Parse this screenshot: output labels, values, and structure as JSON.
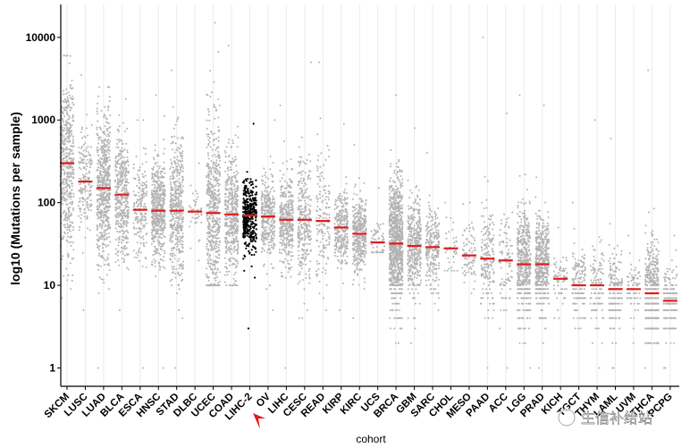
{
  "chart_data": {
    "type": "scatter",
    "subtype": "tmb-strip-plot",
    "xlabel": "cohort",
    "ylabel": "log10 (Mutations per sample)",
    "yscale": "log",
    "ylim": [
      0.6,
      25000
    ],
    "yticks": [
      1,
      10,
      100,
      1000,
      10000
    ],
    "grid": "vertical",
    "point_color": "#b3b3b3",
    "highlight_color": "#000000",
    "median_color": "#e31a1c",
    "highlight_cohort": "LIHC-2",
    "cohorts": [
      {
        "name": "SKCM",
        "median": 300,
        "n": 470,
        "spread": 0.55,
        "max": 6000,
        "min": 7
      },
      {
        "name": "LUSC",
        "median": 180,
        "n": 180,
        "spread": 0.3,
        "max": 3500,
        "min": 5
      },
      {
        "name": "LUAD",
        "median": 150,
        "n": 570,
        "spread": 0.45,
        "max": 2500,
        "min": 1
      },
      {
        "name": "BLCA",
        "median": 125,
        "n": 410,
        "spread": 0.4,
        "max": 1800,
        "min": 5
      },
      {
        "name": "ESCA",
        "median": 82,
        "n": 185,
        "spread": 0.28,
        "max": 1000,
        "min": 1
      },
      {
        "name": "HNSC",
        "median": 80,
        "n": 510,
        "spread": 0.3,
        "max": 2000,
        "min": 1
      },
      {
        "name": "STAD",
        "median": 80,
        "n": 440,
        "spread": 0.45,
        "max": 4000,
        "min": 1
      },
      {
        "name": "DLBC",
        "median": 78,
        "n": 40,
        "spread": 0.2,
        "max": 300,
        "min": 20
      },
      {
        "name": "UCEC",
        "median": 75,
        "n": 540,
        "spread": 0.6,
        "max": 15000,
        "min": 10
      },
      {
        "name": "COAD",
        "median": 72,
        "n": 430,
        "spread": 0.4,
        "max": 8000,
        "min": 10
      },
      {
        "name": "LIHC-2",
        "median": 70,
        "n": 370,
        "spread": 0.22,
        "max": 900,
        "min": 3
      },
      {
        "name": "OV",
        "median": 68,
        "n": 320,
        "spread": 0.25,
        "max": 1000,
        "min": 5
      },
      {
        "name": "LIHC",
        "median": 62,
        "n": 370,
        "spread": 0.28,
        "max": 1500,
        "min": 1
      },
      {
        "name": "CESC",
        "median": 62,
        "n": 290,
        "spread": 0.38,
        "max": 5000,
        "min": 4
      },
      {
        "name": "READ",
        "median": 60,
        "n": 150,
        "spread": 0.38,
        "max": 5000,
        "min": 5
      },
      {
        "name": "KIRP",
        "median": 50,
        "n": 280,
        "spread": 0.22,
        "max": 900,
        "min": 5
      },
      {
        "name": "KIRC",
        "median": 42,
        "n": 370,
        "spread": 0.22,
        "max": 500,
        "min": 4
      },
      {
        "name": "UCS",
        "median": 33,
        "n": 57,
        "spread": 0.12,
        "max": 150,
        "min": 25
      },
      {
        "name": "BRCA",
        "median": 32,
        "n": 990,
        "spread": 0.4,
        "max": 2000,
        "min": 2
      },
      {
        "name": "GBM",
        "median": 30,
        "n": 390,
        "spread": 0.3,
        "max": 800,
        "min": 2
      },
      {
        "name": "SARC",
        "median": 29,
        "n": 240,
        "spread": 0.25,
        "max": 400,
        "min": 5
      },
      {
        "name": "CHOL",
        "median": 28,
        "n": 36,
        "spread": 0.18,
        "max": 100,
        "min": 15
      },
      {
        "name": "MESO",
        "median": 23,
        "n": 82,
        "spread": 0.18,
        "max": 100,
        "min": 8
      },
      {
        "name": "PAAD",
        "median": 21,
        "n": 180,
        "spread": 0.35,
        "max": 10000,
        "min": 1
      },
      {
        "name": "ACC",
        "median": 20,
        "n": 92,
        "spread": 0.3,
        "max": 1200,
        "min": 1
      },
      {
        "name": "LGG",
        "median": 18,
        "n": 510,
        "spread": 0.35,
        "max": 2000,
        "min": 1
      },
      {
        "name": "PRAD",
        "median": 18,
        "n": 490,
        "spread": 0.3,
        "max": 1500,
        "min": 1
      },
      {
        "name": "KICH",
        "median": 12,
        "n": 66,
        "spread": 0.15,
        "max": 50,
        "min": 4
      },
      {
        "name": "TGCT",
        "median": 10,
        "n": 150,
        "spread": 0.22,
        "max": 100,
        "min": 3
      },
      {
        "name": "THYM",
        "median": 10,
        "n": 120,
        "spread": 0.25,
        "max": 1000,
        "min": 1
      },
      {
        "name": "LAML",
        "median": 9,
        "n": 190,
        "spread": 0.25,
        "max": 600,
        "min": 1
      },
      {
        "name": "UVM",
        "median": 9,
        "n": 80,
        "spread": 0.15,
        "max": 40,
        "min": 2
      },
      {
        "name": "THCA",
        "median": 8,
        "n": 490,
        "spread": 0.3,
        "max": 4000,
        "min": 1
      },
      {
        "name": "PCPG",
        "median": 6.5,
        "n": 180,
        "spread": 0.2,
        "max": 40,
        "min": 1
      }
    ]
  }
}
